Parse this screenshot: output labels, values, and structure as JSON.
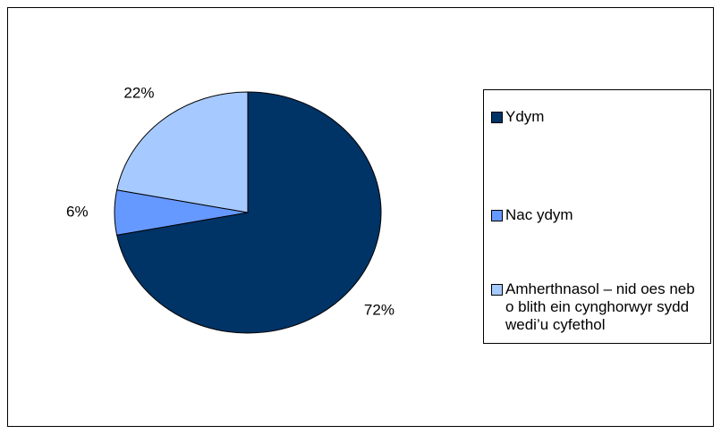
{
  "chart_data": {
    "type": "pie",
    "categories": [
      "Ydym",
      "Nac ydym",
      "Amherthnasol – nid oes neb o blith ein cynghorwyr sydd wedi’u cyfethol"
    ],
    "values": [
      72,
      6,
      22
    ],
    "value_labels": [
      "72%",
      "6%",
      "22%"
    ],
    "colors": [
      "#003366",
      "#6699ff",
      "#a6caff"
    ],
    "legend": "right"
  }
}
